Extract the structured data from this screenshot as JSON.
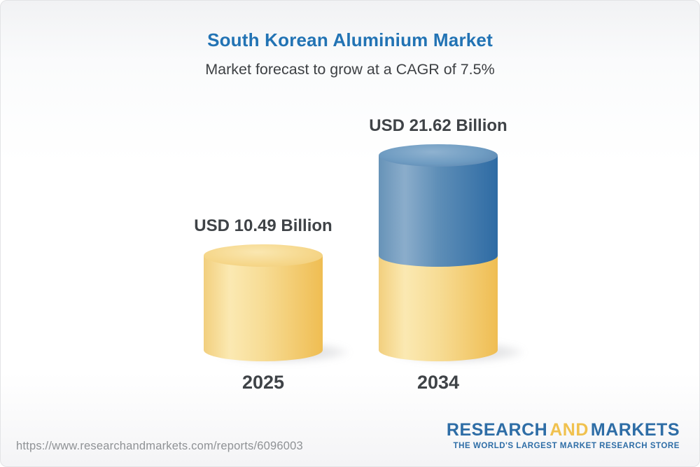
{
  "header": {
    "title": "South Korean Aluminium Market",
    "subtitle": "Market forecast to grow at a CAGR of 7.5%"
  },
  "chart_data": {
    "type": "bar",
    "subtype": "3d-cylinder-stacked",
    "title": "South Korean Aluminium Market",
    "subtitle": "Market forecast to grow at a CAGR of 7.5%",
    "cagr_pct": 7.5,
    "unit": "USD Billion",
    "categories": [
      "2025",
      "2034"
    ],
    "values": [
      10.49,
      21.62
    ],
    "bar_value_labels": [
      "USD 10.49 Billion",
      "USD 21.62 Billion"
    ],
    "xlabel": "",
    "ylabel": "",
    "ylim": [
      0,
      21.62
    ],
    "grid": false,
    "legend": false,
    "bars": [
      {
        "category": "2025",
        "label": "USD 10.49 Billion",
        "total": 10.49,
        "segments": [
          {
            "name": "market-size-2025",
            "value": 10.49,
            "color": "yellow"
          }
        ]
      },
      {
        "category": "2034",
        "label": "USD 21.62 Billion",
        "total": 21.62,
        "segments": [
          {
            "name": "base-2025-level",
            "value": 10.49,
            "color": "yellow"
          },
          {
            "name": "growth-2025-to-2034",
            "value": 11.13,
            "color": "blue"
          }
        ]
      }
    ]
  },
  "colors": {
    "title_blue": "#2273B4",
    "text_dark": "#3F4347",
    "bar_yellow": "#F2CA67",
    "bar_blue": "#4679A9",
    "logo_blue": "#2E6DA6",
    "logo_yellow": "#F0C14E",
    "url_gray": "#8F9295"
  },
  "footer": {
    "url": "https://www.researchandmarkets.com/reports/6096003",
    "logo": {
      "word1": "RESEARCH",
      "word2": "AND",
      "word3": "MARKETS",
      "tagline": "THE WORLD'S LARGEST MARKET RESEARCH STORE"
    }
  }
}
